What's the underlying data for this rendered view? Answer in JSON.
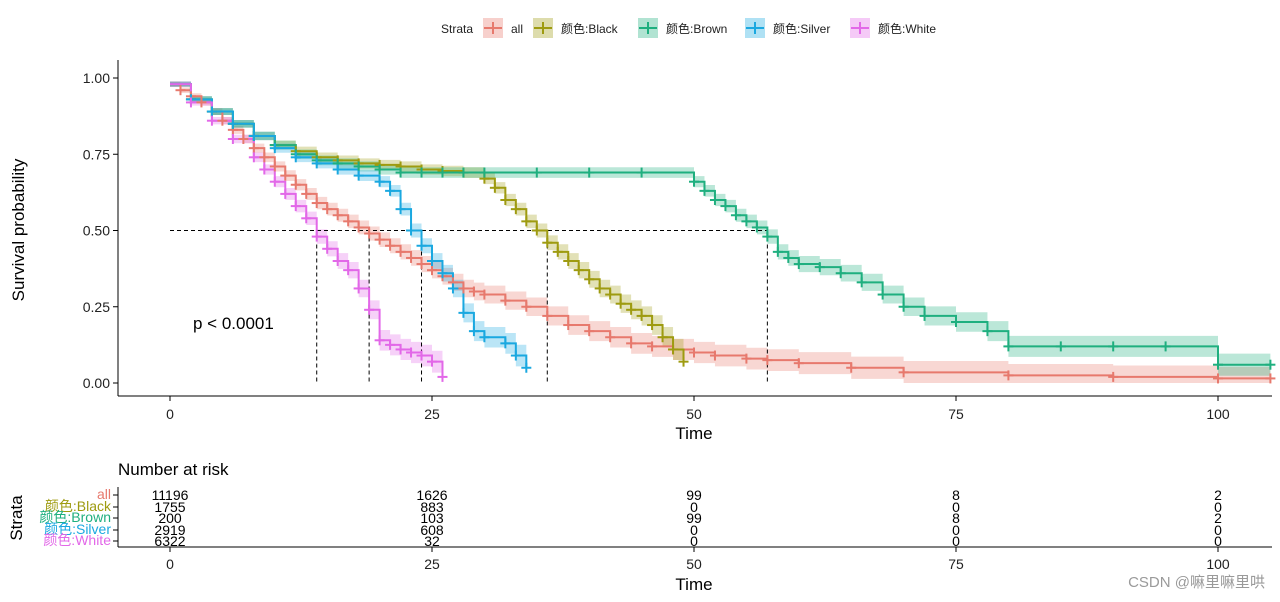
{
  "chart_data": [
    {
      "type": "line",
      "subtype": "kaplan-meier",
      "title": "",
      "xlabel": "Time",
      "ylabel": "Survival probability",
      "xlim": [
        -10,
        105
      ],
      "ylim": [
        -0.05,
        1.05
      ],
      "xticks": [
        0,
        25,
        50,
        75,
        100
      ],
      "xtick_labels": [
        "0",
        "25",
        "50",
        "75",
        "100"
      ],
      "yticks": [
        0,
        0.25,
        0.5,
        0.75,
        1.0
      ],
      "ytick_labels": [
        "0.00",
        "0.25",
        "0.50",
        "0.75",
        "1.00"
      ],
      "grid": false,
      "annotation": "p < 0.0001",
      "legend": {
        "title": "Strata",
        "position": "top",
        "entries": [
          "all",
          "颜色:Black",
          "颜色:Brown",
          "颜色:Silver",
          "颜色:White"
        ]
      },
      "median_line": {
        "y": 0.5,
        "x_values": [
          14,
          19,
          24,
          36,
          57
        ]
      },
      "series": [
        {
          "name": "all",
          "color": "#E7796D",
          "x": [
            0,
            1,
            2,
            3,
            4,
            5,
            6,
            7,
            8,
            9,
            10,
            11,
            12,
            13,
            14,
            15,
            16,
            17,
            18,
            19,
            20,
            21,
            22,
            23,
            24,
            25,
            26,
            27,
            28,
            29,
            30,
            32,
            34,
            36,
            38,
            40,
            42,
            44,
            46,
            48,
            50,
            52,
            55,
            57,
            60,
            65,
            70,
            80,
            90,
            100,
            105
          ],
          "y": [
            0.98,
            0.96,
            0.94,
            0.92,
            0.89,
            0.86,
            0.83,
            0.8,
            0.77,
            0.74,
            0.71,
            0.68,
            0.65,
            0.62,
            0.59,
            0.57,
            0.55,
            0.53,
            0.51,
            0.49,
            0.47,
            0.45,
            0.43,
            0.41,
            0.39,
            0.37,
            0.35,
            0.33,
            0.31,
            0.3,
            0.29,
            0.27,
            0.25,
            0.22,
            0.19,
            0.17,
            0.15,
            0.13,
            0.12,
            0.11,
            0.1,
            0.09,
            0.08,
            0.075,
            0.065,
            0.05,
            0.035,
            0.025,
            0.02,
            0.015,
            0.015
          ]
        },
        {
          "name": "颜色:Black",
          "color": "#9E9B10",
          "x": [
            0,
            2,
            4,
            6,
            8,
            10,
            12,
            14,
            16,
            18,
            20,
            22,
            24,
            26,
            28,
            30,
            31,
            32,
            33,
            34,
            35,
            36,
            37,
            38,
            39,
            40,
            41,
            42,
            43,
            44,
            45,
            46,
            47,
            48,
            49
          ],
          "y": [
            0.98,
            0.93,
            0.89,
            0.85,
            0.81,
            0.78,
            0.76,
            0.74,
            0.73,
            0.72,
            0.715,
            0.71,
            0.7,
            0.695,
            0.69,
            0.67,
            0.64,
            0.6,
            0.57,
            0.53,
            0.5,
            0.46,
            0.43,
            0.4,
            0.37,
            0.34,
            0.31,
            0.29,
            0.26,
            0.24,
            0.22,
            0.19,
            0.15,
            0.11,
            0.07
          ]
        },
        {
          "name": "颜色:Brown",
          "color": "#1FAF7F",
          "x": [
            0,
            2,
            4,
            6,
            8,
            10,
            12,
            14,
            16,
            18,
            20,
            22,
            24,
            26,
            28,
            30,
            35,
            40,
            45,
            50,
            51,
            52,
            53,
            54,
            55,
            56,
            57,
            58,
            59,
            60,
            62,
            64,
            66,
            68,
            70,
            72,
            75,
            78,
            80,
            85,
            90,
            95,
            100,
            105
          ],
          "y": [
            0.98,
            0.93,
            0.89,
            0.85,
            0.81,
            0.78,
            0.75,
            0.73,
            0.72,
            0.71,
            0.7,
            0.69,
            0.69,
            0.69,
            0.69,
            0.69,
            0.69,
            0.69,
            0.69,
            0.66,
            0.63,
            0.6,
            0.58,
            0.55,
            0.53,
            0.51,
            0.48,
            0.43,
            0.41,
            0.39,
            0.38,
            0.36,
            0.33,
            0.29,
            0.25,
            0.22,
            0.2,
            0.17,
            0.12,
            0.12,
            0.12,
            0.12,
            0.06,
            0.06
          ]
        },
        {
          "name": "颜色:Silver",
          "color": "#1AA8E0",
          "x": [
            0,
            2,
            4,
            6,
            8,
            10,
            12,
            14,
            16,
            18,
            20,
            21,
            22,
            23,
            24,
            25,
            26,
            27,
            28,
            29,
            30,
            32,
            33,
            34
          ],
          "y": [
            0.98,
            0.93,
            0.89,
            0.85,
            0.81,
            0.77,
            0.74,
            0.72,
            0.7,
            0.68,
            0.66,
            0.63,
            0.57,
            0.5,
            0.45,
            0.4,
            0.36,
            0.31,
            0.23,
            0.17,
            0.15,
            0.13,
            0.09,
            0.05
          ]
        },
        {
          "name": "颜色:White",
          "color": "#E268E8",
          "x": [
            0,
            2,
            4,
            6,
            8,
            9,
            10,
            11,
            12,
            13,
            14,
            15,
            16,
            17,
            18,
            19,
            20,
            21,
            22,
            23,
            24,
            25,
            26
          ],
          "y": [
            0.98,
            0.92,
            0.86,
            0.8,
            0.74,
            0.7,
            0.66,
            0.62,
            0.58,
            0.54,
            0.48,
            0.44,
            0.4,
            0.37,
            0.31,
            0.24,
            0.14,
            0.125,
            0.11,
            0.1,
            0.09,
            0.07,
            0.02
          ]
        }
      ]
    },
    {
      "type": "table",
      "title": "Number at risk",
      "xlabel": "Time",
      "ylabel": "Strata",
      "xlim": [
        -10,
        105
      ],
      "xticks": [
        0,
        25,
        50,
        75,
        100
      ],
      "xtick_labels": [
        "0",
        "25",
        "50",
        "75",
        "100"
      ],
      "rows": [
        {
          "name": "all",
          "color": "#E7796D",
          "values": [
            "11196",
            "1626",
            "99",
            "8",
            "2"
          ]
        },
        {
          "name": "颜色:Black",
          "color": "#9E9B10",
          "values": [
            "1755",
            "883",
            "0",
            "0",
            "0"
          ]
        },
        {
          "name": "颜色:Brown",
          "color": "#1FAF7F",
          "values": [
            "200",
            "103",
            "99",
            "8",
            "2"
          ]
        },
        {
          "name": "颜色:Silver",
          "color": "#1AA8E0",
          "values": [
            "2919",
            "608",
            "0",
            "0",
            "0"
          ]
        },
        {
          "name": "颜色:White",
          "color": "#E268E8",
          "values": [
            "6322",
            "32",
            "0",
            "0",
            "0"
          ]
        }
      ]
    }
  ],
  "watermark": "CSDN @嘛里嘛里哄"
}
